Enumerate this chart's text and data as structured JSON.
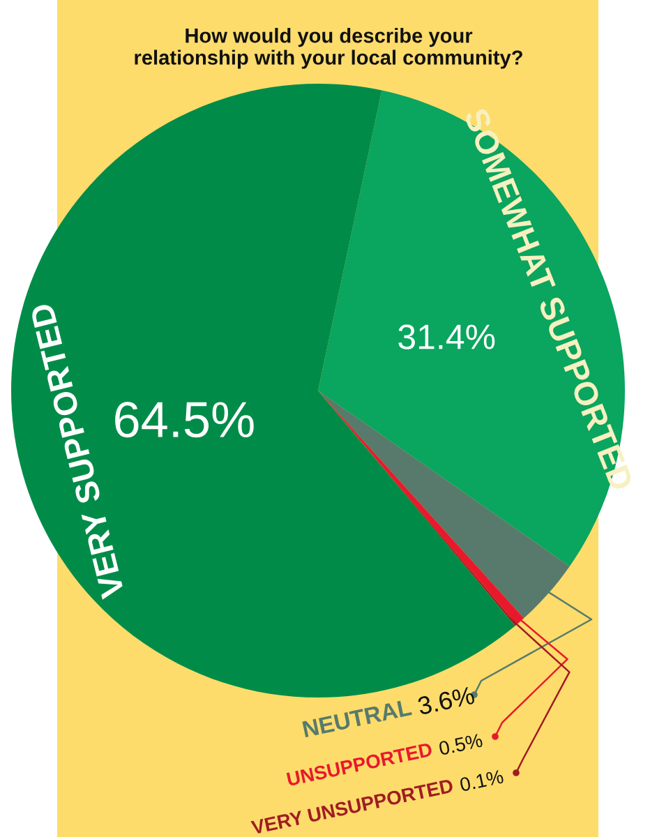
{
  "chart_data": {
    "type": "pie",
    "title": "How would you describe your\nrelationship with your local community?",
    "categories": [
      "SOMEWHAT SUPPORTED",
      "NEUTRAL",
      "UNSUPPORTED",
      "VERY UNSUPPORTED",
      "VERY SUPPORTED"
    ],
    "values": [
      31.4,
      3.6,
      0.5,
      0.1,
      64.5
    ],
    "colors": [
      "#0aa55f",
      "#577a6c",
      "#e8192c",
      "#a01c22",
      "#008c48"
    ],
    "value_labels": [
      "31.4%",
      "3.6%",
      "0.5%",
      "0.1%",
      "64.5%"
    ]
  }
}
